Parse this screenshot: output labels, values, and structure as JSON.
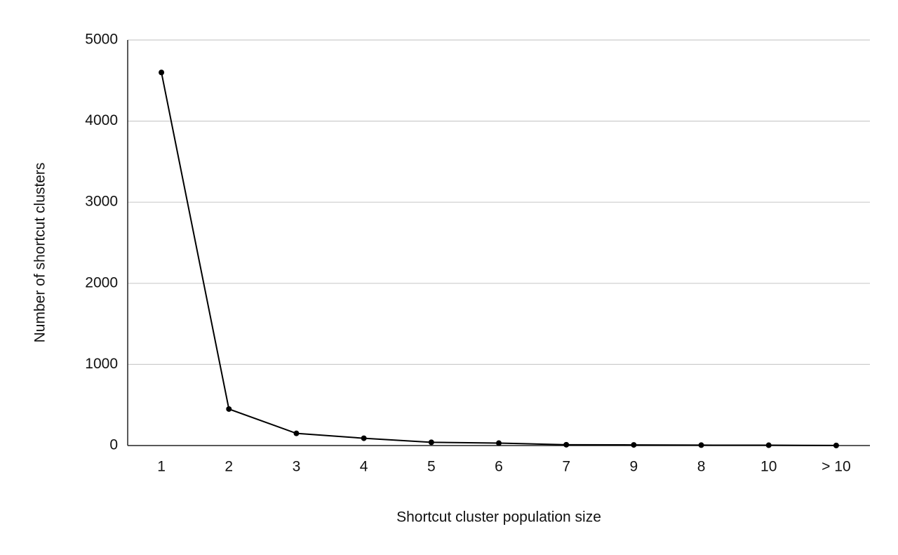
{
  "chart_data": {
    "type": "line",
    "x_label": "Shortcut cluster population size",
    "y_label": "Number of shortcut clusters",
    "categories": [
      "1",
      "2",
      "3",
      "4",
      "5",
      "6",
      "7",
      "9",
      "8",
      "10",
      "> 10"
    ],
    "series": [
      {
        "color": "#000000",
        "values": [
          4600,
          450,
          150,
          90,
          40,
          30,
          10,
          8,
          5,
          4,
          1
        ]
      }
    ],
    "ylim": [
      0,
      5000
    ],
    "yticks": [
      0,
      1000,
      2000,
      3000,
      4000,
      5000
    ],
    "grid": true
  }
}
